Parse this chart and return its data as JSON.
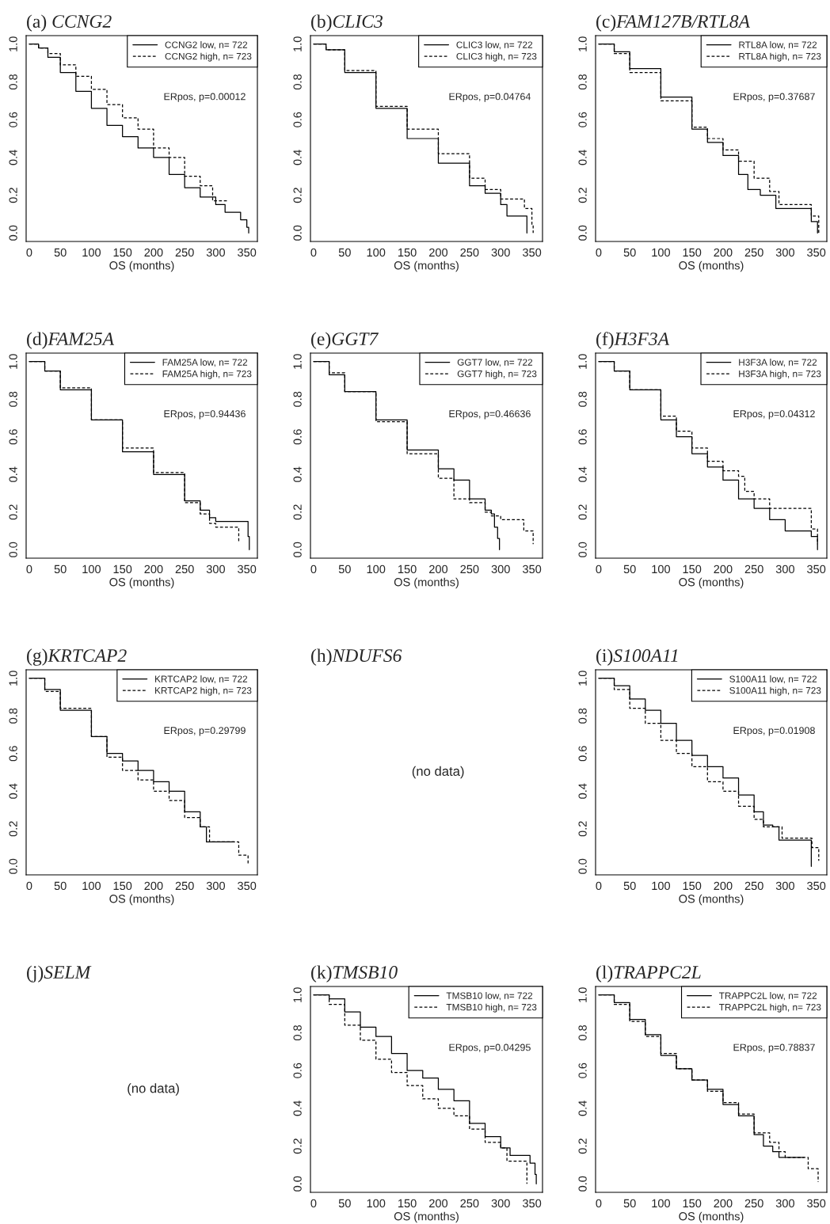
{
  "chart_data": [
    {
      "type": "step",
      "title": "(a) CCNG2",
      "xlabel": "OS (months)",
      "xlim": [
        -5,
        367
      ],
      "ylim": [
        -0.045,
        1.045
      ],
      "xticks": [
        0,
        50,
        100,
        150,
        200,
        250,
        300,
        350
      ],
      "yticks": [
        {
          "value": 0,
          "label": "0.0"
        },
        {
          "value": 0.2,
          "label": "0.2"
        },
        {
          "value": 0.4,
          "label": "0.4"
        },
        {
          "value": 0.6,
          "label": "0.6"
        },
        {
          "value": 0.8,
          "label": "0.8"
        },
        {
          "value": 1,
          "label": "1.0"
        }
      ],
      "legend": "top right",
      "annotations": [
        "ERpos, p=0.00012"
      ],
      "series": [
        {
          "name": "CCNG2 low, n= 722",
          "color": "#000000",
          "line_style": "solid",
          "x": [
            0,
            15,
            30,
            50,
            75,
            100,
            125,
            150,
            175,
            200,
            225,
            250,
            275,
            300,
            315,
            340,
            350,
            353
          ],
          "values": [
            1,
            0.98,
            0.93,
            0.85,
            0.75,
            0.66,
            0.57,
            0.51,
            0.45,
            0.4,
            0.31,
            0.24,
            0.19,
            0.15,
            0.11,
            0.07,
            0.03,
            0
          ]
        },
        {
          "name": "CCNG2 high, n= 723",
          "color": "#000000",
          "line_style": "dashed",
          "x": [
            0,
            15,
            30,
            50,
            75,
            100,
            125,
            150,
            175,
            200,
            225,
            250,
            275,
            295,
            320
          ],
          "values": [
            1,
            0.98,
            0.95,
            0.89,
            0.83,
            0.76,
            0.68,
            0.61,
            0.55,
            0.45,
            0.4,
            0.3,
            0.25,
            0.17,
            0.17
          ]
        }
      ]
    },
    {
      "type": "step",
      "title": "(b)CLIC3",
      "xlabel": "OS (months)",
      "xlim": [
        -5,
        367
      ],
      "ylim": [
        -0.045,
        1.045
      ],
      "xticks": [
        0,
        50,
        100,
        150,
        200,
        250,
        300,
        350
      ],
      "yticks": [
        {
          "value": 0,
          "label": "0.0"
        },
        {
          "value": 0.2,
          "label": "0.2"
        },
        {
          "value": 0.4,
          "label": "0.4"
        },
        {
          "value": 0.6,
          "label": "0.6"
        },
        {
          "value": 0.8,
          "label": "0.8"
        },
        {
          "value": 1,
          "label": "1.0"
        }
      ],
      "legend": "top right",
      "annotations": [
        "ERpos, p=0.04764"
      ],
      "series": [
        {
          "name": "CLIC3 low, n= 722",
          "color": "#000000",
          "line_style": "solid",
          "x": [
            0,
            20,
            50,
            100,
            150,
            200,
            250,
            275,
            300,
            310,
            340,
            342
          ],
          "values": [
            1,
            0.97,
            0.85,
            0.66,
            0.5,
            0.37,
            0.25,
            0.21,
            0.15,
            0.09,
            0.09,
            0
          ]
        },
        {
          "name": "CLIC3 high, n= 723",
          "color": "#000000",
          "line_style": "dashed",
          "x": [
            0,
            20,
            50,
            100,
            150,
            200,
            250,
            275,
            300,
            338,
            350,
            352
          ],
          "values": [
            1,
            0.97,
            0.86,
            0.67,
            0.55,
            0.42,
            0.29,
            0.23,
            0.18,
            0.13,
            0.04,
            0
          ]
        }
      ]
    },
    {
      "type": "step",
      "title": "(c)FAM127B/RTL8A",
      "xlabel": "OS (months)",
      "xlim": [
        -5,
        367
      ],
      "ylim": [
        -0.045,
        1.045
      ],
      "xticks": [
        0,
        50,
        100,
        150,
        200,
        250,
        300,
        350
      ],
      "yticks": [
        {
          "value": 0,
          "label": "0.0"
        },
        {
          "value": 0.2,
          "label": "0.2"
        },
        {
          "value": 0.4,
          "label": "0.4"
        },
        {
          "value": 0.6,
          "label": "0.6"
        },
        {
          "value": 0.8,
          "label": "0.8"
        },
        {
          "value": 1,
          "label": "1.0"
        }
      ],
      "legend": "top right",
      "annotations": [
        "ERpos, p=0.37687"
      ],
      "series": [
        {
          "name": "RTL8A low, n= 722",
          "color": "#000000",
          "line_style": "solid",
          "x": [
            0,
            25,
            50,
            100,
            150,
            175,
            200,
            225,
            240,
            260,
            285,
            342,
            352
          ],
          "values": [
            1,
            0.96,
            0.87,
            0.72,
            0.55,
            0.48,
            0.41,
            0.31,
            0.23,
            0.2,
            0.13,
            0.06,
            0
          ]
        },
        {
          "name": "RTL8A high, n= 723",
          "color": "#000000",
          "line_style": "dashed",
          "x": [
            0,
            25,
            50,
            100,
            150,
            175,
            200,
            225,
            250,
            275,
            290,
            342,
            354
          ],
          "values": [
            1,
            0.95,
            0.85,
            0.7,
            0.56,
            0.5,
            0.44,
            0.38,
            0.29,
            0.22,
            0.15,
            0.09,
            0
          ]
        }
      ]
    },
    {
      "type": "step",
      "title": "(d)FAM25A",
      "xlabel": "OS (months)",
      "xlim": [
        -5,
        367
      ],
      "ylim": [
        -0.045,
        1.045
      ],
      "xticks": [
        0,
        50,
        100,
        150,
        200,
        250,
        300,
        350
      ],
      "yticks": [
        {
          "value": 0,
          "label": "0.0"
        },
        {
          "value": 0.2,
          "label": "0.2"
        },
        {
          "value": 0.4,
          "label": "0.4"
        },
        {
          "value": 0.6,
          "label": "0.6"
        },
        {
          "value": 0.8,
          "label": "0.8"
        },
        {
          "value": 1,
          "label": "1.0"
        }
      ],
      "legend": "top right",
      "annotations": [
        "ERpos, p=0.94436"
      ],
      "series": [
        {
          "name": "FAM25A low, n= 722",
          "color": "#000000",
          "line_style": "solid",
          "x": [
            0,
            25,
            50,
            100,
            150,
            200,
            250,
            275,
            290,
            300,
            352,
            354
          ],
          "values": [
            1,
            0.95,
            0.85,
            0.69,
            0.52,
            0.4,
            0.26,
            0.21,
            0.17,
            0.15,
            0.07,
            0
          ]
        },
        {
          "name": "FAM25A high, n= 723",
          "color": "#000000",
          "line_style": "dashed",
          "x": [
            0,
            25,
            50,
            100,
            150,
            200,
            250,
            275,
            290,
            300,
            337
          ],
          "values": [
            1,
            0.95,
            0.86,
            0.69,
            0.54,
            0.41,
            0.25,
            0.19,
            0.14,
            0.12,
            0.04
          ]
        }
      ]
    },
    {
      "type": "step",
      "title": "(e)GGT7",
      "xlabel": "OS (months)",
      "xlim": [
        -5,
        367
      ],
      "ylim": [
        -0.045,
        1.045
      ],
      "xticks": [
        0,
        50,
        100,
        150,
        200,
        250,
        300,
        350
      ],
      "yticks": [
        {
          "value": 0,
          "label": "0.0"
        },
        {
          "value": 0.2,
          "label": "0.2"
        },
        {
          "value": 0.4,
          "label": "0.4"
        },
        {
          "value": 0.6,
          "label": "0.6"
        },
        {
          "value": 0.8,
          "label": "0.8"
        },
        {
          "value": 1,
          "label": "1.0"
        }
      ],
      "legend": "top right",
      "annotations": [
        "ERpos, p=0.46636"
      ],
      "series": [
        {
          "name": "GGT7 low, n= 722",
          "color": "#000000",
          "line_style": "solid",
          "x": [
            0,
            25,
            50,
            100,
            150,
            200,
            225,
            250,
            275,
            285,
            290,
            295,
            298
          ],
          "values": [
            1,
            0.93,
            0.84,
            0.69,
            0.53,
            0.43,
            0.37,
            0.27,
            0.21,
            0.19,
            0.12,
            0.06,
            0
          ]
        },
        {
          "name": "GGT7 high, n= 723",
          "color": "#000000",
          "line_style": "dashed",
          "x": [
            0,
            25,
            50,
            100,
            150,
            200,
            225,
            250,
            275,
            285,
            300,
            337,
            352
          ],
          "values": [
            1,
            0.94,
            0.84,
            0.68,
            0.51,
            0.38,
            0.27,
            0.25,
            0.2,
            0.18,
            0.16,
            0.1,
            0.03
          ]
        }
      ]
    },
    {
      "type": "step",
      "title": "(f)H3F3A",
      "xlabel": "OS (months)",
      "xlim": [
        -5,
        367
      ],
      "ylim": [
        -0.045,
        1.045
      ],
      "xticks": [
        0,
        50,
        100,
        150,
        200,
        250,
        300,
        350
      ],
      "yticks": [
        {
          "value": 0,
          "label": "0.0"
        },
        {
          "value": 0.2,
          "label": "0.2"
        },
        {
          "value": 0.4,
          "label": "0.4"
        },
        {
          "value": 0.6,
          "label": "0.6"
        },
        {
          "value": 0.8,
          "label": "0.8"
        },
        {
          "value": 1,
          "label": "1.0"
        }
      ],
      "legend": "top right",
      "annotations": [
        "ERpos, p=0.04312"
      ],
      "series": [
        {
          "name": "H3F3A low, n= 722",
          "color": "#000000",
          "line_style": "solid",
          "x": [
            0,
            25,
            50,
            100,
            125,
            150,
            175,
            200,
            225,
            250,
            275,
            300,
            342,
            352
          ],
          "values": [
            1,
            0.95,
            0.85,
            0.69,
            0.6,
            0.51,
            0.44,
            0.37,
            0.27,
            0.22,
            0.16,
            0.1,
            0.07,
            0
          ]
        },
        {
          "name": "H3F3A high, n= 723",
          "color": "#000000",
          "line_style": "dashed",
          "x": [
            0,
            25,
            50,
            100,
            125,
            150,
            175,
            200,
            225,
            235,
            250,
            275,
            342,
            352
          ],
          "values": [
            1,
            0.95,
            0.85,
            0.71,
            0.63,
            0.54,
            0.47,
            0.42,
            0.39,
            0.31,
            0.27,
            0.22,
            0.11,
            0.03
          ]
        }
      ]
    },
    {
      "type": "step",
      "title": "(g)KRTCAP2",
      "xlabel": "OS (months)",
      "xlim": [
        -5,
        367
      ],
      "ylim": [
        -0.045,
        1.045
      ],
      "xticks": [
        0,
        50,
        100,
        150,
        200,
        250,
        300,
        350
      ],
      "yticks": [
        {
          "value": 0,
          "label": "0.0"
        },
        {
          "value": 0.2,
          "label": "0.2"
        },
        {
          "value": 0.4,
          "label": "0.4"
        },
        {
          "value": 0.6,
          "label": "0.6"
        },
        {
          "value": 0.8,
          "label": "0.8"
        },
        {
          "value": 1,
          "label": "1.0"
        }
      ],
      "legend": "top right",
      "annotations": [
        "ERpos, p=0.29799"
      ],
      "series": [
        {
          "name": "KRTCAP2 low, n= 722",
          "color": "#000000",
          "line_style": "solid",
          "x": [
            0,
            25,
            50,
            100,
            125,
            150,
            175,
            200,
            225,
            250,
            275,
            285,
            330
          ],
          "values": [
            1,
            0.94,
            0.83,
            0.69,
            0.6,
            0.56,
            0.51,
            0.45,
            0.4,
            0.29,
            0.21,
            0.13,
            0.13
          ]
        },
        {
          "name": "KRTCAP2 high, n= 723",
          "color": "#000000",
          "line_style": "dashed",
          "x": [
            0,
            25,
            50,
            100,
            125,
            150,
            175,
            200,
            225,
            250,
            275,
            290,
            337,
            352
          ],
          "values": [
            1,
            0.93,
            0.84,
            0.69,
            0.58,
            0.51,
            0.46,
            0.4,
            0.35,
            0.26,
            0.21,
            0.13,
            0.06,
            0.01
          ]
        }
      ]
    },
    {
      "type": "other",
      "title": "(h)NDUFS6",
      "annotations": [
        "(no data)"
      ]
    },
    {
      "type": "step",
      "title": "(i)S100A11",
      "xlabel": "OS (months)",
      "xlim": [
        -5,
        367
      ],
      "ylim": [
        -0.045,
        1.045
      ],
      "xticks": [
        0,
        50,
        100,
        150,
        200,
        250,
        300,
        350
      ],
      "yticks": [
        {
          "value": 0,
          "label": "0.0"
        },
        {
          "value": 0.2,
          "label": "0.2"
        },
        {
          "value": 0.4,
          "label": "0.4"
        },
        {
          "value": 0.6,
          "label": "0.6"
        },
        {
          "value": 0.8,
          "label": "0.8"
        },
        {
          "value": 1,
          "label": "1.0"
        }
      ],
      "legend": "top right",
      "annotations": [
        "ERpos, p=0.01908"
      ],
      "series": [
        {
          "name": "S100A11 low, n= 722",
          "color": "#000000",
          "line_style": "solid",
          "x": [
            0,
            25,
            50,
            75,
            100,
            125,
            150,
            175,
            200,
            225,
            250,
            265,
            280,
            290,
            342
          ],
          "values": [
            1,
            0.96,
            0.89,
            0.83,
            0.76,
            0.67,
            0.59,
            0.53,
            0.47,
            0.38,
            0.29,
            0.22,
            0.21,
            0.14,
            0
          ]
        },
        {
          "name": "S100A11 high, n= 723",
          "color": "#000000",
          "line_style": "dashed",
          "x": [
            0,
            25,
            50,
            75,
            100,
            125,
            150,
            175,
            200,
            225,
            250,
            265,
            295,
            343,
            354
          ],
          "values": [
            1,
            0.94,
            0.84,
            0.76,
            0.67,
            0.6,
            0.53,
            0.45,
            0.4,
            0.32,
            0.25,
            0.21,
            0.15,
            0.1,
            0.03
          ]
        }
      ]
    },
    {
      "type": "other",
      "title": "(j)SELM",
      "annotations": [
        "(no data)"
      ]
    },
    {
      "type": "step",
      "title": "(k)TMSB10",
      "xlabel": "OS (months)",
      "xlim": [
        -5,
        367
      ],
      "ylim": [
        -0.045,
        1.045
      ],
      "xticks": [
        0,
        50,
        100,
        150,
        200,
        250,
        300,
        350
      ],
      "yticks": [
        {
          "value": 0,
          "label": "0.0"
        },
        {
          "value": 0.2,
          "label": "0.2"
        },
        {
          "value": 0.4,
          "label": "0.4"
        },
        {
          "value": 0.6,
          "label": "0.6"
        },
        {
          "value": 0.8,
          "label": "0.8"
        },
        {
          "value": 1,
          "label": "1.0"
        }
      ],
      "legend": "top right",
      "annotations": [
        "ERpos, p=0.04295"
      ],
      "series": [
        {
          "name": "TMSB10 low, n= 722",
          "color": "#000000",
          "line_style": "solid",
          "x": [
            0,
            25,
            50,
            75,
            100,
            125,
            150,
            175,
            200,
            225,
            250,
            275,
            300,
            315,
            347,
            355,
            357
          ],
          "values": [
            1,
            0.98,
            0.91,
            0.83,
            0.78,
            0.69,
            0.6,
            0.56,
            0.5,
            0.44,
            0.32,
            0.25,
            0.19,
            0.15,
            0.11,
            0.05,
            0
          ]
        },
        {
          "name": "TMSB10 high, n= 723",
          "color": "#000000",
          "line_style": "dashed",
          "x": [
            0,
            25,
            50,
            75,
            100,
            125,
            150,
            175,
            200,
            225,
            250,
            275,
            300,
            310,
            342
          ],
          "values": [
            1,
            0.95,
            0.84,
            0.76,
            0.66,
            0.59,
            0.52,
            0.45,
            0.4,
            0.36,
            0.29,
            0.22,
            0.19,
            0.12,
            0
          ]
        }
      ]
    },
    {
      "type": "step",
      "title": "(l)TRAPPC2L",
      "xlabel": "OS (months)",
      "xlim": [
        -5,
        367
      ],
      "ylim": [
        -0.045,
        1.045
      ],
      "xticks": [
        0,
        50,
        100,
        150,
        200,
        250,
        300,
        350
      ],
      "yticks": [
        {
          "value": 0,
          "label": "0.0"
        },
        {
          "value": 0.2,
          "label": "0.2"
        },
        {
          "value": 0.4,
          "label": "0.4"
        },
        {
          "value": 0.6,
          "label": "0.6"
        },
        {
          "value": 0.8,
          "label": "0.8"
        },
        {
          "value": 1,
          "label": "1.0"
        }
      ],
      "legend": "top right",
      "annotations": [
        "ERpos, p=0.78837"
      ],
      "series": [
        {
          "name": "TRAPPC2L low, n= 722",
          "color": "#000000",
          "line_style": "solid",
          "x": [
            0,
            25,
            50,
            75,
            100,
            125,
            150,
            175,
            200,
            225,
            250,
            265,
            280,
            290,
            330
          ],
          "values": [
            1,
            0.96,
            0.87,
            0.79,
            0.68,
            0.61,
            0.55,
            0.5,
            0.42,
            0.36,
            0.26,
            0.2,
            0.17,
            0.14,
            0.14
          ]
        },
        {
          "name": "TRAPPC2L high, n= 723",
          "color": "#000000",
          "line_style": "dashed",
          "x": [
            0,
            25,
            50,
            75,
            100,
            125,
            150,
            175,
            200,
            225,
            250,
            275,
            290,
            300,
            337,
            353
          ],
          "values": [
            1,
            0.95,
            0.86,
            0.78,
            0.69,
            0.61,
            0.55,
            0.49,
            0.43,
            0.37,
            0.27,
            0.22,
            0.17,
            0.14,
            0.08,
            0.01
          ]
        }
      ]
    }
  ]
}
